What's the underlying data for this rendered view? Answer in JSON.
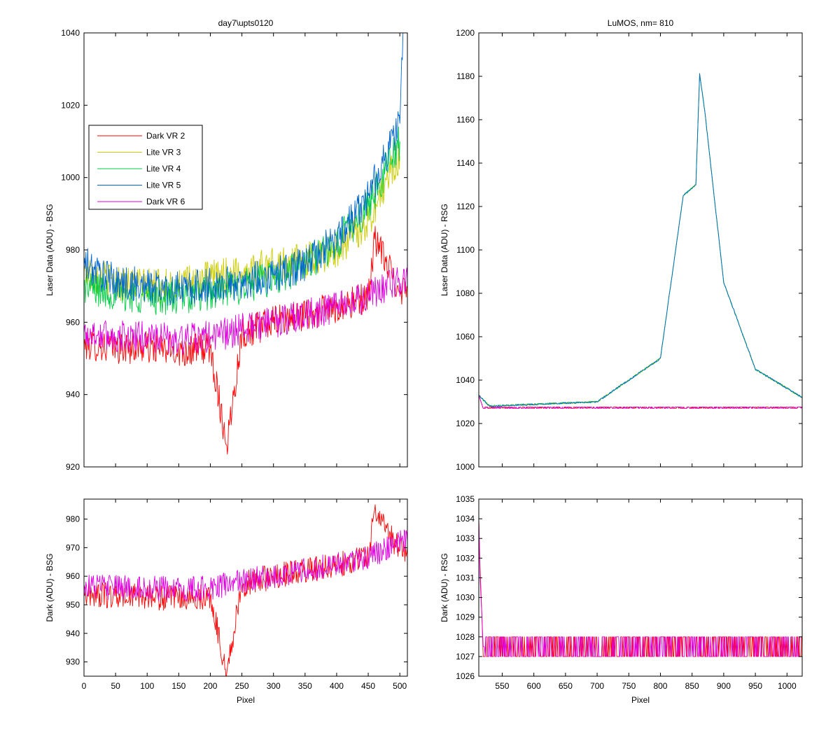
{
  "figure": {
    "panels": [
      {
        "id": "tl",
        "title": "day7\\upts0120",
        "ylabel": "Laser Data (ADU) - BSG",
        "xlabel": "",
        "xlim": [
          0,
          512
        ],
        "ylim": [
          920,
          1040
        ],
        "xticks": [
          0,
          50,
          100,
          150,
          200,
          250,
          300,
          350,
          400,
          450,
          500
        ],
        "yticks": [
          920,
          940,
          960,
          980,
          1000,
          1020,
          1040
        ],
        "show_xticklabels": false
      },
      {
        "id": "tr",
        "title": "LuMOS, nm= 810",
        "ylabel": "Laser Data (ADU) - RSG",
        "xlabel": "",
        "xlim": [
          513,
          1024
        ],
        "ylim": [
          1000,
          1200
        ],
        "xticks": [
          550,
          600,
          650,
          700,
          750,
          800,
          850,
          900,
          950,
          1000
        ],
        "yticks": [
          1000,
          1020,
          1040,
          1060,
          1080,
          1100,
          1120,
          1140,
          1160,
          1180,
          1200
        ],
        "show_xticklabels": false
      },
      {
        "id": "bl",
        "title": "",
        "ylabel": "Dark (ADU) - BSG",
        "xlabel": "Pixel",
        "xlim": [
          0,
          512
        ],
        "ylim": [
          925,
          987
        ],
        "xticks": [
          0,
          50,
          100,
          150,
          200,
          250,
          300,
          350,
          400,
          450,
          500
        ],
        "yticks": [
          930,
          940,
          950,
          960,
          970,
          980
        ],
        "show_xticklabels": true
      },
      {
        "id": "br",
        "title": "",
        "ylabel": "Dark (ADU) - RSG",
        "xlabel": "Pixel",
        "xlim": [
          513,
          1024
        ],
        "ylim": [
          1026,
          1035
        ],
        "xticks": [
          550,
          600,
          650,
          700,
          750,
          800,
          850,
          900,
          950,
          1000
        ],
        "yticks": [
          1026,
          1027,
          1028,
          1029,
          1030,
          1031,
          1032,
          1033,
          1034,
          1035
        ],
        "show_xticklabels": true
      }
    ],
    "legend": {
      "placement": "upper-left (top-left panel)",
      "entries": [
        {
          "label": "Dark VR 2",
          "color": "#ff0000"
        },
        {
          "label": "Lite VR 3",
          "color": "#cccc00"
        },
        {
          "label": "Lite VR 4",
          "color": "#00cc44"
        },
        {
          "label": "Lite VR 5",
          "color": "#0066cc"
        },
        {
          "label": "Dark VR 6",
          "color": "#dd00dd"
        }
      ]
    }
  },
  "chart_data": [
    {
      "type": "line",
      "title": "day7\\upts0120",
      "ylabel": "Laser Data (ADU) - BSG",
      "xlim": [
        0,
        512
      ],
      "ylim": [
        920,
        1040
      ],
      "grid": false,
      "legend": "top-left",
      "series": [
        {
          "name": "Dark VR 2",
          "color": "#ff0000",
          "x": [
            0,
            50,
            100,
            150,
            200,
            226,
            250,
            300,
            350,
            400,
            450,
            460,
            500,
            512
          ],
          "y": [
            954,
            953,
            953,
            952,
            953,
            926,
            957,
            960,
            962,
            964,
            967,
            983,
            969,
            970
          ]
        },
        {
          "name": "Lite VR 3",
          "color": "#cccc00",
          "x": [
            0,
            50,
            100,
            150,
            200,
            250,
            300,
            350,
            400,
            450,
            490,
            500
          ],
          "y": [
            974,
            971,
            970,
            970,
            972,
            974,
            976,
            977,
            980,
            988,
            1003,
            1006
          ]
        },
        {
          "name": "Lite VR 4",
          "color": "#00cc44",
          "x": [
            0,
            50,
            100,
            150,
            200,
            250,
            300,
            350,
            400,
            450,
            500
          ],
          "y": [
            970,
            968,
            967,
            967,
            968,
            970,
            972,
            976,
            982,
            992,
            1010
          ]
        },
        {
          "name": "Lite VR 5",
          "color": "#0066cc",
          "x": [
            0,
            50,
            100,
            150,
            200,
            250,
            300,
            350,
            400,
            450,
            500,
            505
          ],
          "y": [
            976,
            971,
            970,
            969,
            970,
            971,
            973,
            976,
            983,
            995,
            1015,
            1040
          ]
        },
        {
          "name": "Dark VR 6",
          "color": "#dd00dd",
          "x": [
            0,
            50,
            100,
            150,
            200,
            250,
            300,
            350,
            400,
            450,
            505,
            512
          ],
          "y": [
            957,
            956,
            956,
            955,
            956,
            958,
            960,
            962,
            964,
            967,
            972,
            972
          ]
        }
      ]
    },
    {
      "type": "line",
      "title": "LuMOS, nm= 810",
      "ylabel": "Laser Data (ADU) - RSG",
      "xlim": [
        513,
        1024
      ],
      "ylim": [
        1000,
        1200
      ],
      "grid": false,
      "series": [
        {
          "name": "Dark VR 2",
          "color": "#ff0000",
          "x": [
            513,
            520,
            1024
          ],
          "y": [
            1033,
            1027,
            1027
          ]
        },
        {
          "name": "Lite VR 3",
          "color": "#cccc00",
          "x": [
            513,
            530,
            700,
            800,
            836,
            856,
            862,
            870,
            900,
            950,
            1024
          ],
          "y": [
            1033,
            1028,
            1030,
            1050,
            1125,
            1130,
            1181,
            1164,
            1085,
            1045,
            1032
          ]
        },
        {
          "name": "Lite VR 4",
          "color": "#00cc44",
          "x": [
            513,
            530,
            700,
            800,
            836,
            856,
            862,
            870,
            900,
            950,
            1024
          ],
          "y": [
            1033,
            1028,
            1030,
            1050,
            1125,
            1130,
            1181,
            1164,
            1085,
            1045,
            1032
          ]
        },
        {
          "name": "Lite VR 5",
          "color": "#0066cc",
          "x": [
            513,
            530,
            700,
            800,
            836,
            856,
            862,
            870,
            900,
            950,
            1024
          ],
          "y": [
            1033,
            1028,
            1030,
            1050,
            1125,
            1130,
            1181,
            1164,
            1085,
            1045,
            1032
          ]
        },
        {
          "name": "Dark VR 6",
          "color": "#dd00dd",
          "x": [
            513,
            520,
            1024
          ],
          "y": [
            1033,
            1027,
            1027
          ]
        }
      ]
    },
    {
      "type": "line",
      "xlabel": "Pixel",
      "ylabel": "Dark (ADU) - BSG",
      "xlim": [
        0,
        512
      ],
      "ylim": [
        925,
        987
      ],
      "grid": false,
      "series": [
        {
          "name": "Dark VR 2",
          "color": "#ff0000",
          "x": [
            0,
            50,
            100,
            150,
            200,
            226,
            250,
            300,
            350,
            400,
            450,
            460,
            500,
            512
          ],
          "y": [
            954,
            953,
            953,
            952,
            953,
            926,
            957,
            960,
            962,
            964,
            967,
            983,
            969,
            970
          ]
        },
        {
          "name": "Dark VR 6",
          "color": "#dd00dd",
          "x": [
            0,
            50,
            100,
            150,
            200,
            250,
            300,
            350,
            400,
            450,
            505,
            512
          ],
          "y": [
            957,
            956,
            956,
            955,
            956,
            958,
            960,
            962,
            964,
            967,
            972,
            972
          ]
        }
      ]
    },
    {
      "type": "line",
      "xlabel": "Pixel",
      "ylabel": "Dark (ADU) - RSG",
      "xlim": [
        513,
        1024
      ],
      "ylim": [
        1026,
        1035
      ],
      "grid": false,
      "series": [
        {
          "name": "Dark VR 2",
          "color": "#ff0000",
          "x": [
            513,
            515,
            518,
            520,
            1024
          ],
          "y": [
            1034,
            1031.5,
            1029,
            1027,
            1027.5
          ]
        },
        {
          "name": "Dark VR 6",
          "color": "#dd00dd",
          "x": [
            513,
            515,
            518,
            520,
            1024
          ],
          "y": [
            1034,
            1031,
            1029,
            1027.5,
            1027.5
          ]
        }
      ]
    }
  ]
}
